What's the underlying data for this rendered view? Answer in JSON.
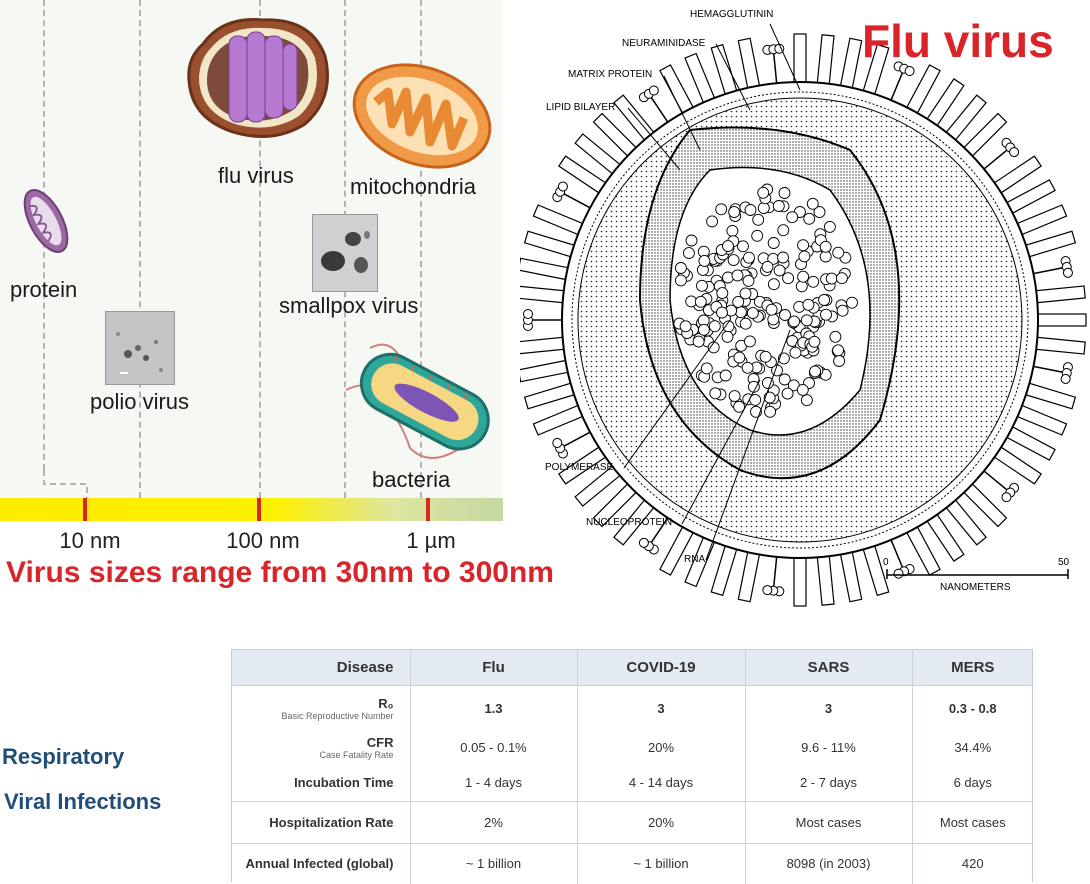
{
  "scale": {
    "tick_labels": [
      "10 nm",
      "100 nm",
      "1 µm"
    ],
    "objects": {
      "protein": "protein",
      "polio": "polio virus",
      "flu": "flu virus",
      "smallpox": "smallpox virus",
      "mitochondria": "mitochondria",
      "bacteria": "bacteria"
    }
  },
  "caption_sizes": "Virus sizes range from 30nm to 300nm",
  "flu_diagram": {
    "title": "Flu virus",
    "labels": {
      "hemagglutinin": "HEMAGGLUTININ",
      "neuraminidase": "NEURAMINIDASE",
      "matrix_protein": "MATRIX PROTEIN",
      "lipid_bilayer": "LIPID BILAYER",
      "polymerase": "POLYMERASE",
      "nucleoprotein": "NUCLEOPROTEIN",
      "rna": "RNA"
    },
    "scale_bar": {
      "min": "0",
      "max": "50",
      "unit": "NANOMETERS"
    }
  },
  "respiratory": {
    "line1": "Respiratory",
    "line2": "Viral Infections"
  },
  "colors": {
    "accent_red": "#d9252a",
    "heading_blue": "#1f4e79",
    "table_header_bg": "#e4eaf1"
  },
  "table": {
    "columns": [
      "Disease",
      "Flu",
      "COVID-19",
      "SARS",
      "MERS"
    ],
    "rows": [
      {
        "label": "R₀",
        "sub": "Basic Reproductive Number",
        "values": [
          "1.3",
          "3",
          "3",
          "0.3 - 0.8"
        ]
      },
      {
        "label": "CFR",
        "sub": "Case Fatality Rate",
        "values": [
          "0.05 - 0.1%",
          "20%",
          "9.6 - 11%",
          "34.4%"
        ]
      },
      {
        "label": "Incubation Time",
        "values": [
          "1 - 4 days",
          "4 - 14 days",
          "2 - 7 days",
          "6 days"
        ]
      },
      {
        "label": "Hospitalization Rate",
        "values": [
          "2%",
          "20%",
          "Most cases",
          "Most cases"
        ]
      },
      {
        "label": "Annual Infected (global)",
        "values": [
          "~ 1 billion",
          "~ 1 billion",
          "8098 (in 2003)",
          "420"
        ]
      }
    ]
  }
}
